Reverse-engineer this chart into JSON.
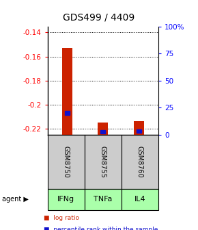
{
  "title": "GDS499 / 4409",
  "samples": [
    "GSM8750",
    "GSM8755",
    "GSM8760"
  ],
  "agents": [
    "IFNg",
    "TNFa",
    "IL4"
  ],
  "log_ratios": [
    -0.153,
    -0.215,
    -0.214
  ],
  "percentile_ranks": [
    20.0,
    2.5,
    3.0
  ],
  "ylim_left": [
    -0.225,
    -0.135
  ],
  "ylim_right": [
    0,
    100
  ],
  "left_ticks": [
    -0.22,
    -0.2,
    -0.18,
    -0.16,
    -0.14
  ],
  "right_ticks": [
    0,
    25,
    50,
    75,
    100
  ],
  "right_tick_labels": [
    "0",
    "25",
    "50",
    "75",
    "100%"
  ],
  "bar_color": "#cc2200",
  "percentile_color": "#1111cc",
  "sample_bg": "#cccccc",
  "agent_bg": "#aaffaa",
  "title_fontsize": 10,
  "tick_fontsize": 7.5,
  "bar_width": 0.28
}
